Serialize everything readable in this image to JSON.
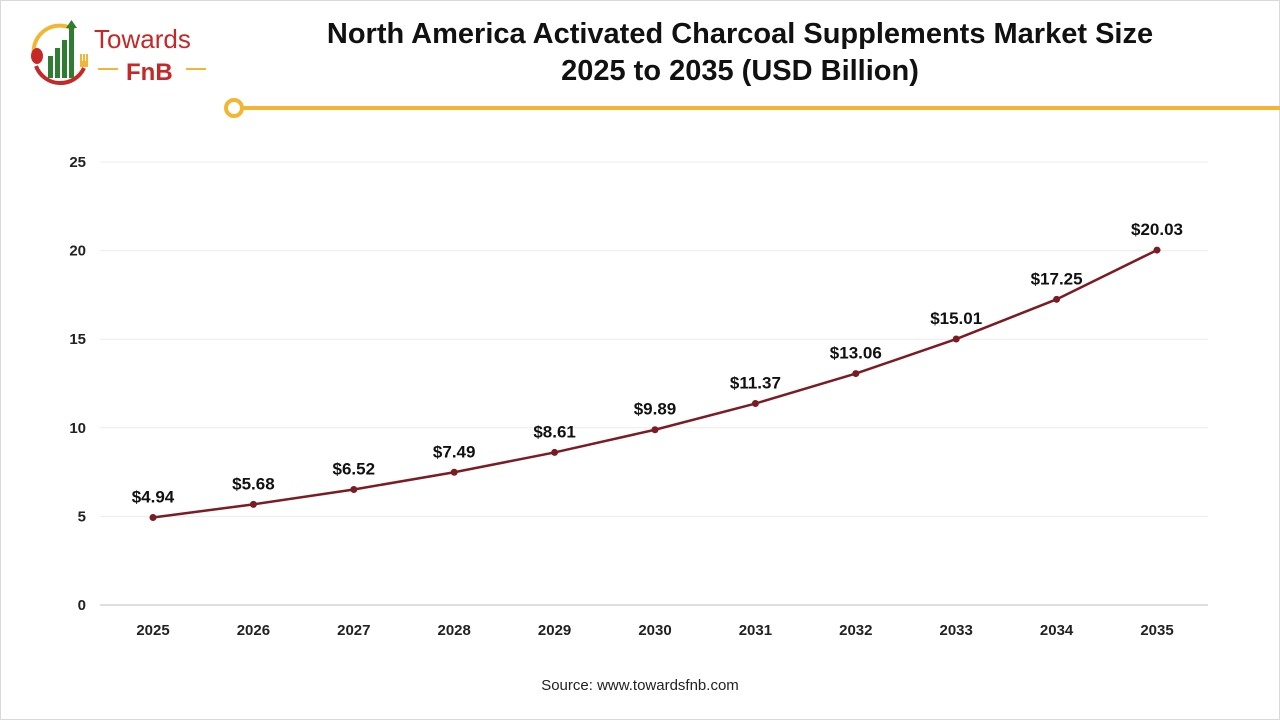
{
  "logo": {
    "line1": "Towards",
    "line2": "FnB",
    "colors": {
      "red": "#c62828",
      "green": "#2e7d32",
      "yellow": "#f2b632"
    }
  },
  "header": {
    "title_line1": "North America Activated Charcoal Supplements Market Size",
    "title_line2": "2025 to 2035 (USD Billion)",
    "accent_color": "#f2b632"
  },
  "chart_data": {
    "type": "line",
    "title": "North America Activated Charcoal Supplements Market Size 2025 to 2035 (USD Billion)",
    "xlabel": "",
    "ylabel": "",
    "categories": [
      "2025",
      "2026",
      "2027",
      "2028",
      "2029",
      "2030",
      "2031",
      "2032",
      "2033",
      "2034",
      "2035"
    ],
    "values": [
      4.94,
      5.68,
      6.52,
      7.49,
      8.61,
      9.89,
      11.37,
      13.06,
      15.01,
      17.25,
      20.03
    ],
    "data_labels": [
      "$4.94",
      "$5.68",
      "$6.52",
      "$7.49",
      "$8.61",
      "$9.89",
      "$11.37",
      "$13.06",
      "$15.01",
      "$17.25",
      "$20.03"
    ],
    "ylim": [
      0,
      25
    ],
    "yticks": [
      "0",
      "5",
      "10",
      "15",
      "20",
      "25"
    ],
    "grid": true,
    "line_color": "#7b1c24"
  },
  "footer": {
    "source": "Source: www.towardsfnb.com"
  }
}
